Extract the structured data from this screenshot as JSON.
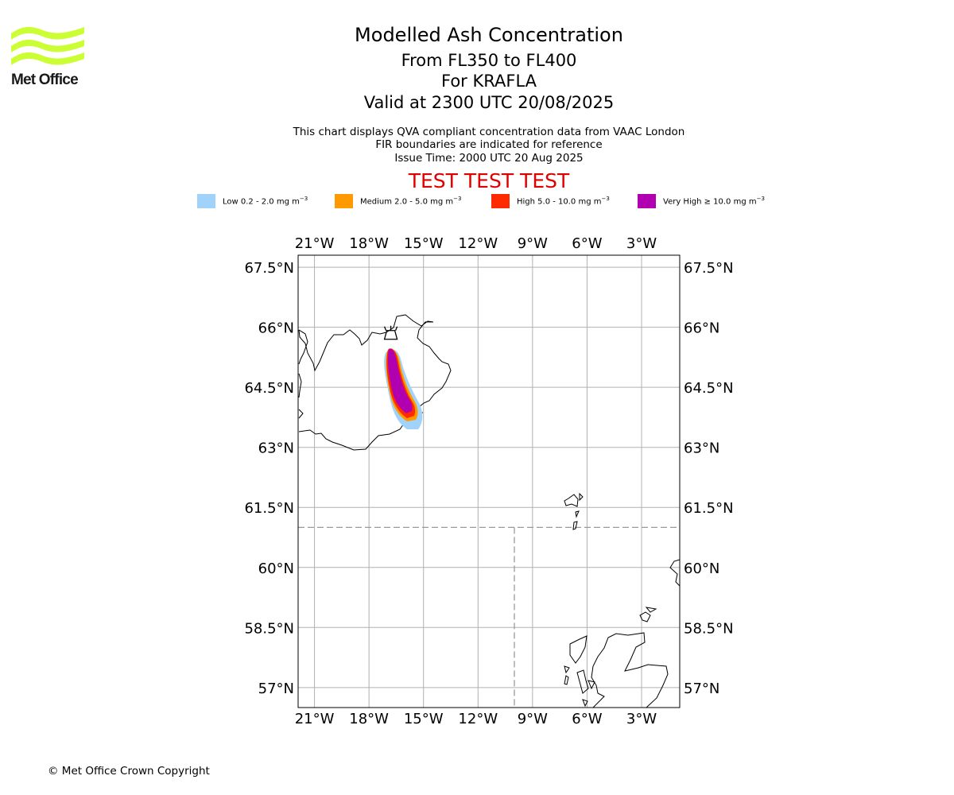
{
  "logo": {
    "text": "Met Office",
    "color": "#ccff33"
  },
  "title": {
    "line1": "Modelled Ash Concentration",
    "line2": "From FL350 to FL400",
    "line3": "For KRAFLA",
    "line4": "Valid at 2300 UTC 20/08/2025"
  },
  "subtitle": {
    "line1": "This chart displays QVA compliant concentration data from VAAC London",
    "line2": "FIR boundaries are indicated for reference",
    "line3": "Issue Time: 2000 UTC 20 Aug 2025"
  },
  "banner": "TEST TEST TEST",
  "legend": [
    {
      "label": "Low 0.2 - 2.0 mg m",
      "unit_exp": "−3",
      "color": "#a0d2fa"
    },
    {
      "label": "Medium 2.0 - 5.0 mg m",
      "unit_exp": "−3",
      "color": "#ff9900"
    },
    {
      "label": "High 5.0 - 10.0 mg m",
      "unit_exp": "−3",
      "color": "#ff2a00"
    },
    {
      "label": "Very High  ≥  10.0 mg m",
      "unit_exp": "−3",
      "color": "#b000b0"
    }
  ],
  "map": {
    "lon_range": [
      -21.9,
      -0.9
    ],
    "lat_range": [
      56.5,
      67.8
    ],
    "lon_ticks": [
      "21°W",
      "18°W",
      "15°W",
      "12°W",
      "9°W",
      "6°W",
      "3°W"
    ],
    "lon_tick_values": [
      -21,
      -18,
      -15,
      -12,
      -9,
      -6,
      -3
    ],
    "lat_ticks": [
      "67.5°N",
      "66°N",
      "64.5°N",
      "63°N",
      "61.5°N",
      "60°N",
      "58.5°N",
      "57°N"
    ],
    "lat_tick_values": [
      67.5,
      66,
      64.5,
      63,
      61.5,
      60,
      58.5,
      57
    ],
    "volcano": {
      "name_icon": "volcano-icon",
      "lon": -16.8,
      "lat": 65.7
    },
    "fir_boundaries": [
      {
        "points": [
          [
            -21.9,
            61.0
          ],
          [
            -0.9,
            61.0
          ]
        ]
      },
      {
        "points": [
          [
            -10.0,
            61.0
          ],
          [
            -10.0,
            56.5
          ]
        ]
      }
    ]
  },
  "copyright": "© Met Office Crown Copyright"
}
